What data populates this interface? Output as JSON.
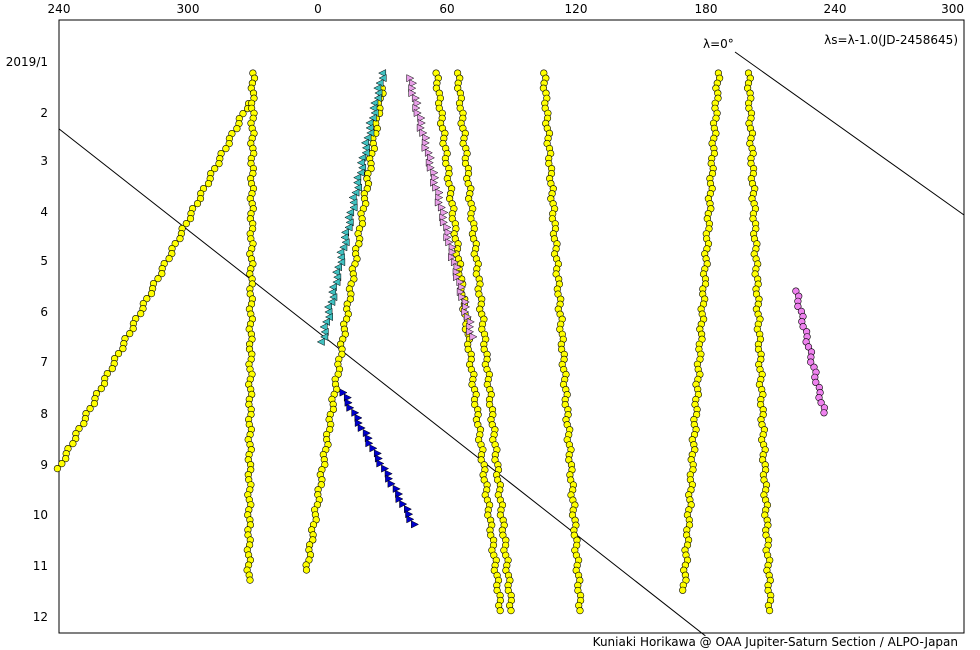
{
  "chart_data": {
    "type": "scatter",
    "annotation_formula": "λs=λ-1.0(JD-2458645)",
    "annotation_lambda_zero": "λ=0°",
    "credit": "Kuniaki Horikawa @ OAA Jupiter-Saturn Section / ALPO-Japan",
    "x_axis": {
      "range": [
        240,
        300
      ],
      "wraps_through": 0,
      "tick_labels": [
        "240",
        "300",
        "0",
        "60",
        "120",
        "180",
        "240",
        "300"
      ]
    },
    "y_axis": {
      "inverted": true,
      "range": [
        2019.0,
        2019.95
      ],
      "tick_labels": [
        "2019/1",
        "2",
        "3",
        "4",
        "5",
        "6",
        "7",
        "8",
        "9",
        "10",
        "11",
        "12"
      ]
    },
    "grid": false,
    "colors": {
      "yellow": "#ffff00",
      "pink": "#ee82ee",
      "blue": "#0000cc",
      "cyan": "#40c0c0",
      "lightpink": "#e8a0e8",
      "line": "#000000"
    },
    "series": [
      {
        "marker": "circle",
        "color": "yellow",
        "tracks": [
          {
            "from": [
              328,
              "2019/1.8"
            ],
            "to": [
              240,
              "2019/9.0"
            ]
          },
          {
            "from": [
              330,
              "2019/1.2"
            ],
            "to": [
              328,
              "2019/11.2"
            ]
          },
          {
            "from": [
              30,
              "2019/1.5"
            ],
            "to": [
              355,
              "2019/11.0"
            ]
          },
          {
            "from": [
              55,
              "2019/1.2"
            ],
            "to": [
              85,
              "2019/11.8"
            ]
          },
          {
            "from": [
              65,
              "2019/1.2"
            ],
            "to": [
              90,
              "2019/11.8"
            ]
          },
          {
            "from": [
              105,
              "2019/1.2"
            ],
            "to": [
              122,
              "2019/11.8"
            ]
          },
          {
            "from": [
              186,
              "2019/1.2"
            ],
            "to": [
              170,
              "2019/11.4"
            ]
          },
          {
            "from": [
              200,
              "2019/1.2"
            ],
            "to": [
              210,
              "2019/11.8"
            ]
          }
        ]
      },
      {
        "marker": "circle",
        "color": "pink",
        "tracks": [
          {
            "from": [
              222,
              "2019/5.5"
            ],
            "to": [
              235,
              "2019/7.9"
            ]
          }
        ]
      },
      {
        "marker": "triangle",
        "color": "blue",
        "tracks": [
          {
            "from": [
              12,
              "2019/7.5"
            ],
            "to": [
              45,
              "2019/10.1"
            ]
          }
        ]
      },
      {
        "marker": "triangle",
        "color": "cyan",
        "tracks": [
          {
            "from": [
              30,
              "2019/1.2"
            ],
            "to": [
              2,
              "2019/6.5"
            ]
          }
        ]
      },
      {
        "marker": "triangle",
        "color": "lightpink",
        "tracks": [
          {
            "from": [
              43,
              "2019/1.3"
            ],
            "to": [
              72,
              "2019/6.4"
            ]
          }
        ]
      }
    ],
    "reference_lines": [
      {
        "name": "lambda-s-line",
        "from": [
          240,
          "2019/2.3"
        ],
        "to": [
          180,
          "2019/12.3"
        ]
      }
    ]
  }
}
